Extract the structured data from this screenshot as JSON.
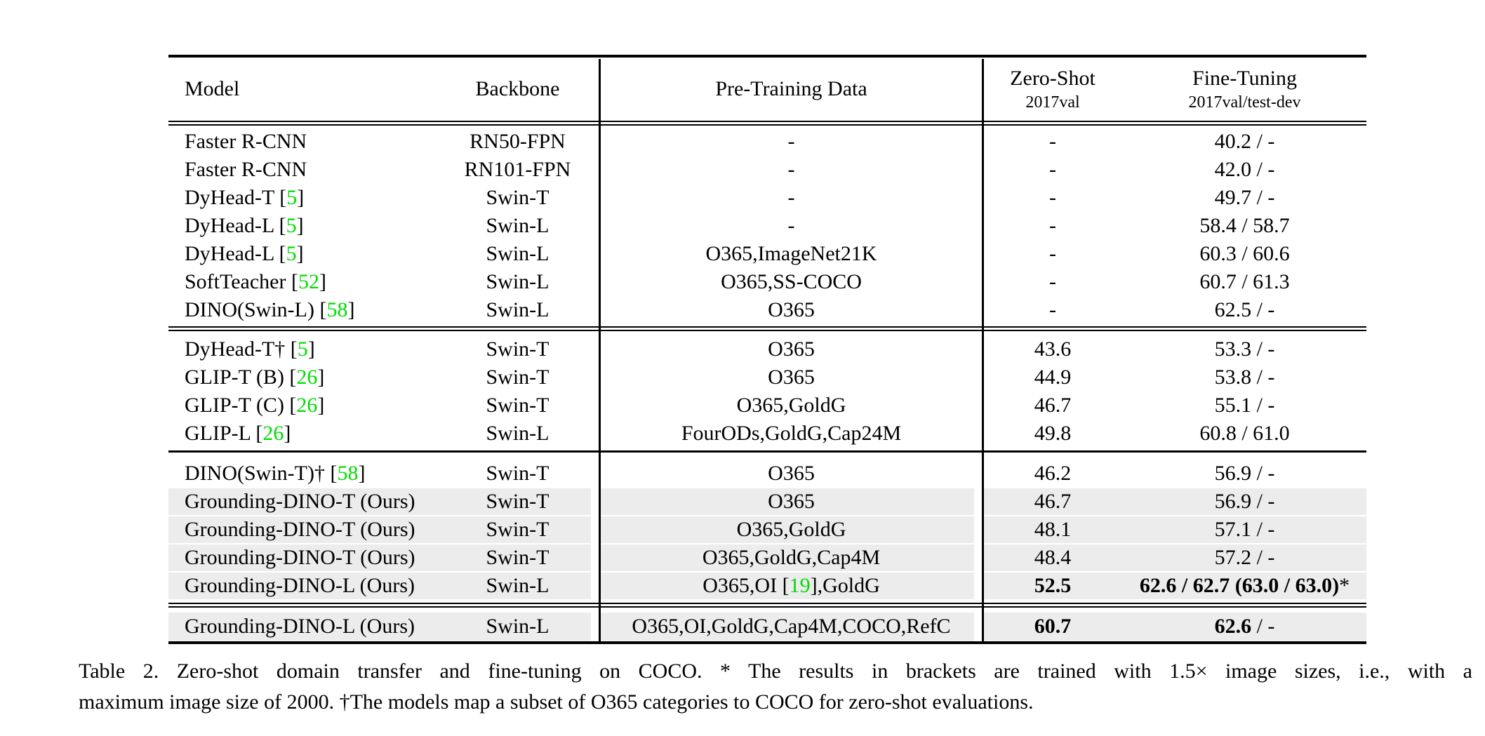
{
  "colors": {
    "citation_green": "#00DC00",
    "row_highlight": "#ECECEC",
    "rule_black": "#000000"
  },
  "table": {
    "header": {
      "model": "Model",
      "backbone": "Backbone",
      "pretrain": "Pre-Training Data",
      "zs1": "Zero-Shot",
      "zs2": "2017val",
      "ft1": "Fine-Tuning",
      "ft2": "2017val/test-dev"
    },
    "sections": [
      {
        "rows": [
          {
            "mp": "Faster R-CNN",
            "mc": "",
            "ms": "",
            "bb": "RN50-FPN",
            "pp": "-",
            "pc": "",
            "ps": "",
            "zs": "-",
            "zb": "",
            "fa": "40.2 / -",
            "fb": "",
            "fc": "",
            "hl": false
          },
          {
            "mp": "Faster R-CNN",
            "mc": "",
            "ms": "",
            "bb": "RN101-FPN",
            "pp": "-",
            "pc": "",
            "ps": "",
            "zs": "-",
            "zb": "",
            "fa": "42.0 / -",
            "fb": "",
            "fc": "",
            "hl": false
          },
          {
            "mp": "DyHead-T [",
            "mc": "5",
            "ms": "]",
            "bb": "Swin-T",
            "pp": "-",
            "pc": "",
            "ps": "",
            "zs": "-",
            "zb": "",
            "fa": "49.7 / -",
            "fb": "",
            "fc": "",
            "hl": false
          },
          {
            "mp": "DyHead-L [",
            "mc": "5",
            "ms": "]",
            "bb": "Swin-L",
            "pp": "-",
            "pc": "",
            "ps": "",
            "zs": "-",
            "zb": "",
            "fa": "58.4 / 58.7",
            "fb": "",
            "fc": "",
            "hl": false
          },
          {
            "mp": "DyHead-L [",
            "mc": "5",
            "ms": "]",
            "bb": "Swin-L",
            "pp": "O365,ImageNet21K",
            "pc": "",
            "ps": "",
            "zs": "-",
            "zb": "",
            "fa": "60.3 / 60.6",
            "fb": "",
            "fc": "",
            "hl": false
          },
          {
            "mp": "SoftTeacher [",
            "mc": "52",
            "ms": "]",
            "bb": "Swin-L",
            "pp": "O365,SS-COCO",
            "pc": "",
            "ps": "",
            "zs": "-",
            "zb": "",
            "fa": "60.7 / 61.3",
            "fb": "",
            "fc": "",
            "hl": false
          },
          {
            "mp": "DINO(Swin-L) [",
            "mc": "58",
            "ms": "]",
            "bb": "Swin-L",
            "pp": "O365",
            "pc": "",
            "ps": "",
            "zs": "-",
            "zb": "",
            "fa": "62.5 / -",
            "fb": "",
            "fc": "",
            "hl": false
          }
        ]
      },
      {
        "rows": [
          {
            "mp": "DyHead-T† [",
            "mc": "5",
            "ms": "]",
            "bb": "Swin-T",
            "pp": "O365",
            "pc": "",
            "ps": "",
            "zs": "43.6",
            "zb": "",
            "fa": "53.3 / -",
            "fb": "",
            "fc": "",
            "hl": false
          },
          {
            "mp": "GLIP-T (B) [",
            "mc": "26",
            "ms": "]",
            "bb": "Swin-T",
            "pp": "O365",
            "pc": "",
            "ps": "",
            "zs": "44.9",
            "zb": "",
            "fa": "53.8 / -",
            "fb": "",
            "fc": "",
            "hl": false
          },
          {
            "mp": "GLIP-T (C) [",
            "mc": "26",
            "ms": "]",
            "bb": "Swin-T",
            "pp": "O365,GoldG",
            "pc": "",
            "ps": "",
            "zs": "46.7",
            "zb": "",
            "fa": "55.1 / -",
            "fb": "",
            "fc": "",
            "hl": false
          },
          {
            "mp": "GLIP-L [",
            "mc": "26",
            "ms": "]",
            "bb": "Swin-L",
            "pp": "FourODs,GoldG,Cap24M",
            "pc": "",
            "ps": "",
            "zs": "49.8",
            "zb": "",
            "fa": "60.8 / 61.0",
            "fb": "",
            "fc": "",
            "hl": false
          }
        ]
      },
      {
        "rows": [
          {
            "mp": "DINO(Swin-T)† [",
            "mc": "58",
            "ms": "]",
            "bb": "Swin-T",
            "pp": "O365",
            "pc": "",
            "ps": "",
            "zs": "46.2",
            "zb": "",
            "fa": "56.9 / -",
            "fb": "",
            "fc": "",
            "hl": false
          },
          {
            "mp": "Grounding-DINO-T (Ours)",
            "mc": "",
            "ms": "",
            "bb": "Swin-T",
            "pp": "O365",
            "pc": "",
            "ps": "",
            "zs": "46.7",
            "zb": "",
            "fa": "56.9 / -",
            "fb": "",
            "fc": "",
            "hl": true
          },
          {
            "mp": "Grounding-DINO-T (Ours)",
            "mc": "",
            "ms": "",
            "bb": "Swin-T",
            "pp": "O365,GoldG",
            "pc": "",
            "ps": "",
            "zs": "48.1",
            "zb": "",
            "fa": "57.1 / -",
            "fb": "",
            "fc": "",
            "hl": true
          },
          {
            "mp": "Grounding-DINO-T (Ours)",
            "mc": "",
            "ms": "",
            "bb": "Swin-T",
            "pp": "O365,GoldG,Cap4M",
            "pc": "",
            "ps": "",
            "zs": "48.4",
            "zb": "",
            "fa": "57.2 / -",
            "fb": "",
            "fc": "",
            "hl": true
          },
          {
            "mp": "Grounding-DINO-L (Ours)",
            "mc": "",
            "ms": "",
            "bb": "Swin-L",
            "pp": "O365,OI [",
            "pc": "19",
            "ps": "],GoldG",
            "zs": "",
            "zb": "52.5",
            "fa": "",
            "fb": "62.6 / 62.7 (63.0 / 63.0)",
            "fc": "*",
            "hl": true
          }
        ]
      },
      {
        "rows": [
          {
            "mp": "Grounding-DINO-L (Ours)",
            "mc": "",
            "ms": "",
            "bb": "Swin-L",
            "pp": "O365,OI,GoldG,Cap4M,COCO,RefC",
            "pc": "",
            "ps": "",
            "zs": "",
            "zb": "60.7",
            "fa": "",
            "fb": "62.6",
            "fc": " / -",
            "hl": true
          }
        ]
      }
    ]
  },
  "caption": {
    "line1": "Table 2. Zero-shot domain transfer and fine-tuning on COCO. * The results in brackets are trained with 1.5× image sizes, i.e., with a",
    "line2": "maximum image size of 2000. †The models map a subset of O365 categories to COCO for zero-shot evaluations."
  }
}
